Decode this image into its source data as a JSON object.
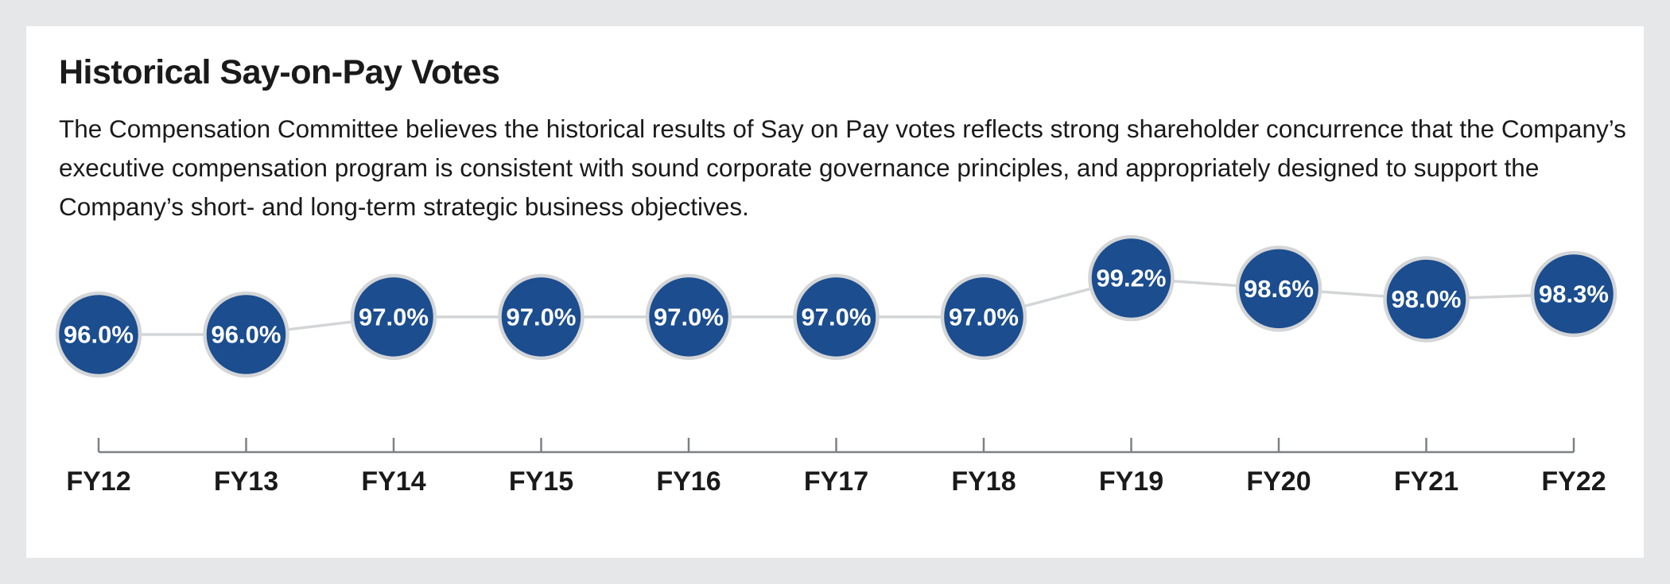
{
  "page": {
    "title": "Historical Say-on-Pay Votes",
    "description": "The Compensation Committee believes the historical results of Say on Pay votes reflects strong shareholder concurrence that the Company’s executive compensation program is consistent with sound corporate governance principles, and appropriately designed to support the Company’s short- and long-term strategic business objectives."
  },
  "colors": {
    "background": "#e6e7e9",
    "card": "#ffffff",
    "bubble_fill": "#1b4d8f",
    "bubble_ring": "#d4d5d7",
    "connector": "#d4d5d7",
    "axis": "#7f8083",
    "text": "#1a1a1a"
  },
  "chart_data": {
    "type": "line",
    "title": "Historical Say-on-Pay Votes",
    "categories": [
      "FY12",
      "FY13",
      "FY14",
      "FY15",
      "FY16",
      "FY17",
      "FY18",
      "FY19",
      "FY20",
      "FY21",
      "FY22"
    ],
    "series": [
      {
        "values": [
          96.0,
          96.0,
          97.0,
          97.0,
          97.0,
          97.0,
          97.0,
          99.2,
          98.6,
          98.0,
          98.3
        ],
        "labels": [
          "96.0%",
          "96.0%",
          "97.0%",
          "97.0%",
          "97.0%",
          "97.0%",
          "97.0%",
          "99.2%",
          "98.6%",
          "98.0%",
          "98.3%"
        ]
      }
    ],
    "unit": "%",
    "ylim": [
      96.0,
      99.2
    ],
    "grid": false,
    "legend": "none",
    "xlabel": "",
    "ylabel": ""
  }
}
